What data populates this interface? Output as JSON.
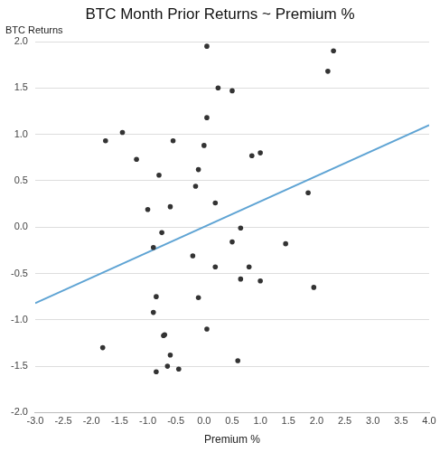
{
  "chart_data": {
    "type": "scatter",
    "title": "BTC Month Prior Returns ~ Premium %",
    "x_label": "Premium %",
    "y_label": "BTC Returns",
    "xlim": [
      -3,
      4
    ],
    "xticks": [
      {
        "value": -3,
        "label": "-3.0"
      },
      {
        "value": -2.5,
        "label": "-2.5"
      },
      {
        "value": -2,
        "label": "-2.0"
      },
      {
        "value": -1.5,
        "label": "-1.5"
      },
      {
        "value": -1,
        "label": "-1.0"
      },
      {
        "value": -0.5,
        "label": "-0.5"
      },
      {
        "value": 0,
        "label": "0.0"
      },
      {
        "value": 0.5,
        "label": "0.5"
      },
      {
        "value": 1,
        "label": "1.0"
      },
      {
        "value": 1.5,
        "label": "1.5"
      },
      {
        "value": 2,
        "label": "2.0"
      },
      {
        "value": 2.5,
        "label": "2.5"
      },
      {
        "value": 3,
        "label": "3.0"
      },
      {
        "value": 3.5,
        "label": "3.5"
      },
      {
        "value": 4,
        "label": "4.0"
      }
    ],
    "ylim": [
      -2,
      2
    ],
    "yticks": [
      {
        "value": -2,
        "label": "-2.0"
      },
      {
        "value": -1.5,
        "label": "-1.5"
      },
      {
        "value": -1,
        "label": "-1.0"
      },
      {
        "value": -0.5,
        "label": "-0.5"
      },
      {
        "value": 0,
        "label": "0.0"
      },
      {
        "value": 0.5,
        "label": "0.5"
      },
      {
        "value": 1,
        "label": "1.0"
      },
      {
        "value": 1.5,
        "label": "1.5"
      },
      {
        "value": 2,
        "label": "2.0"
      }
    ],
    "grid": "y",
    "series": [
      {
        "type": "scatter",
        "color": "#333333",
        "marker": "circle",
        "x": [
          0.05,
          2.3,
          2.2,
          0.25,
          0.5,
          0.05,
          -1.45,
          -1.75,
          -0.55,
          -1.2,
          0.0,
          0.85,
          1.0,
          -0.8,
          -0.1,
          -0.15,
          1.85,
          0.2,
          -1.0,
          -0.6,
          -0.75,
          -0.9,
          0.65,
          0.5,
          1.45,
          -0.2,
          0.2,
          0.8,
          0.65,
          1.0,
          1.95,
          -0.85,
          -0.1,
          -0.9,
          0.05,
          -0.7,
          -0.72,
          -1.8,
          -0.6,
          0.6,
          -0.65,
          -0.45,
          -0.85
        ],
        "values": [
          1.95,
          1.9,
          1.68,
          1.5,
          1.47,
          1.18,
          1.02,
          0.93,
          0.93,
          0.73,
          0.88,
          0.77,
          0.8,
          0.56,
          0.62,
          0.44,
          0.37,
          0.26,
          0.19,
          0.22,
          -0.06,
          -0.22,
          -0.01,
          -0.16,
          -0.18,
          -0.31,
          -0.43,
          -0.43,
          -0.56,
          -0.58,
          -0.65,
          -0.75,
          -0.76,
          -0.92,
          -1.1,
          -1.16,
          -1.17,
          -1.3,
          -1.38,
          -1.44,
          -1.5,
          -1.53,
          -1.56
        ]
      },
      {
        "type": "line",
        "color": "#5fa4d4",
        "line_style": "solid",
        "x": [
          -3,
          4
        ],
        "values": [
          -0.82,
          1.1
        ]
      }
    ]
  }
}
